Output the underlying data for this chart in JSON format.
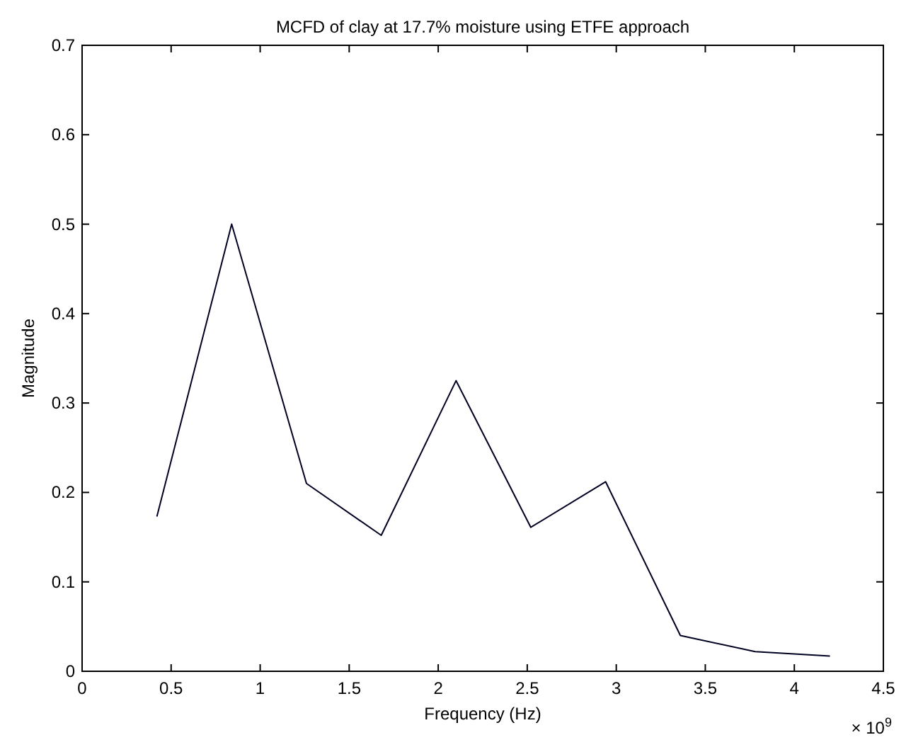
{
  "chart_data": {
    "type": "line",
    "title": "MCFD of clay at 17.7% moisture using ETFE approach",
    "xlabel": "Frequency (Hz)",
    "ylabel": "Magnitude",
    "annotations": [
      "× 10$^{9}$"
    ],
    "x": [
      0.42,
      0.84,
      1.26,
      1.68,
      2.1,
      2.52,
      2.94,
      3.36,
      3.78,
      4.2
    ],
    "series": [
      {
        "color": "#000022",
        "values": [
          0.173,
          0.5,
          0.21,
          0.152,
          0.325,
          0.161,
          0.212,
          0.04,
          0.022,
          0.017
        ]
      }
    ],
    "xlim": [
      0,
      4.5
    ],
    "xticks": [
      0,
      0.5,
      1,
      1.5,
      2,
      2.5,
      3,
      3.5,
      4,
      4.5
    ],
    "ylim": [
      0,
      0.7
    ],
    "yticks": [
      0,
      0.1,
      0.2,
      0.3,
      0.4,
      0.5,
      0.6,
      0.7
    ],
    "grid": false,
    "marker": "none",
    "line_style": "solid"
  }
}
